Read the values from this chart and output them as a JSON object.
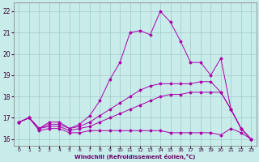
{
  "xlabel": "Windchill (Refroidissement éolien,°C)",
  "xlim": [
    -0.5,
    23.5
  ],
  "ylim": [
    15.7,
    22.4
  ],
  "xticks": [
    0,
    1,
    2,
    3,
    4,
    5,
    6,
    7,
    8,
    9,
    10,
    11,
    12,
    13,
    14,
    15,
    16,
    17,
    18,
    19,
    20,
    21,
    22,
    23
  ],
  "yticks": [
    16,
    17,
    18,
    19,
    20,
    21,
    22
  ],
  "background_color": "#c8ecea",
  "grid_color": "#a8cece",
  "line_color": "#aa00aa",
  "lines": [
    {
      "x": [
        0,
        1,
        2,
        3,
        4,
        5,
        6,
        7,
        8,
        9,
        10,
        11,
        12,
        13,
        14,
        15,
        16,
        17,
        18,
        19,
        20,
        21,
        22,
        23
      ],
      "y": [
        16.8,
        17.0,
        16.4,
        16.5,
        16.5,
        16.3,
        16.3,
        16.4,
        16.4,
        16.4,
        16.4,
        16.4,
        16.4,
        16.4,
        16.4,
        16.3,
        16.3,
        16.3,
        16.3,
        16.3,
        16.2,
        16.5,
        16.3,
        16.0
      ]
    },
    {
      "x": [
        0,
        1,
        2,
        3,
        4,
        5,
        6,
        7,
        8,
        9,
        10,
        11,
        12,
        13,
        14,
        15,
        16,
        17,
        18,
        19,
        20,
        21,
        22,
        23
      ],
      "y": [
        16.8,
        17.0,
        16.5,
        16.6,
        16.6,
        16.4,
        16.5,
        16.6,
        16.8,
        17.0,
        17.2,
        17.4,
        17.6,
        17.8,
        18.0,
        18.1,
        18.1,
        18.2,
        18.2,
        18.2,
        18.2,
        17.4,
        16.5,
        16.0
      ]
    },
    {
      "x": [
        0,
        1,
        2,
        3,
        4,
        5,
        6,
        7,
        8,
        9,
        10,
        11,
        12,
        13,
        14,
        15,
        16,
        17,
        18,
        19,
        20,
        21,
        22,
        23
      ],
      "y": [
        16.8,
        17.0,
        16.5,
        16.7,
        16.7,
        16.5,
        16.6,
        16.8,
        17.1,
        17.4,
        17.7,
        18.0,
        18.3,
        18.5,
        18.6,
        18.6,
        18.6,
        18.6,
        18.7,
        18.7,
        18.2,
        17.4,
        16.5,
        16.0
      ]
    },
    {
      "x": [
        0,
        1,
        2,
        3,
        4,
        5,
        6,
        7,
        8,
        9,
        10,
        11,
        12,
        13,
        14,
        15,
        16,
        17,
        18,
        19,
        20,
        21,
        22,
        23
      ],
      "y": [
        16.8,
        17.0,
        16.5,
        16.8,
        16.8,
        16.5,
        16.7,
        17.1,
        17.8,
        18.8,
        19.6,
        21.0,
        21.1,
        20.9,
        22.0,
        21.5,
        20.6,
        19.6,
        19.6,
        19.0,
        19.8,
        17.4,
        16.5,
        16.0
      ]
    }
  ]
}
